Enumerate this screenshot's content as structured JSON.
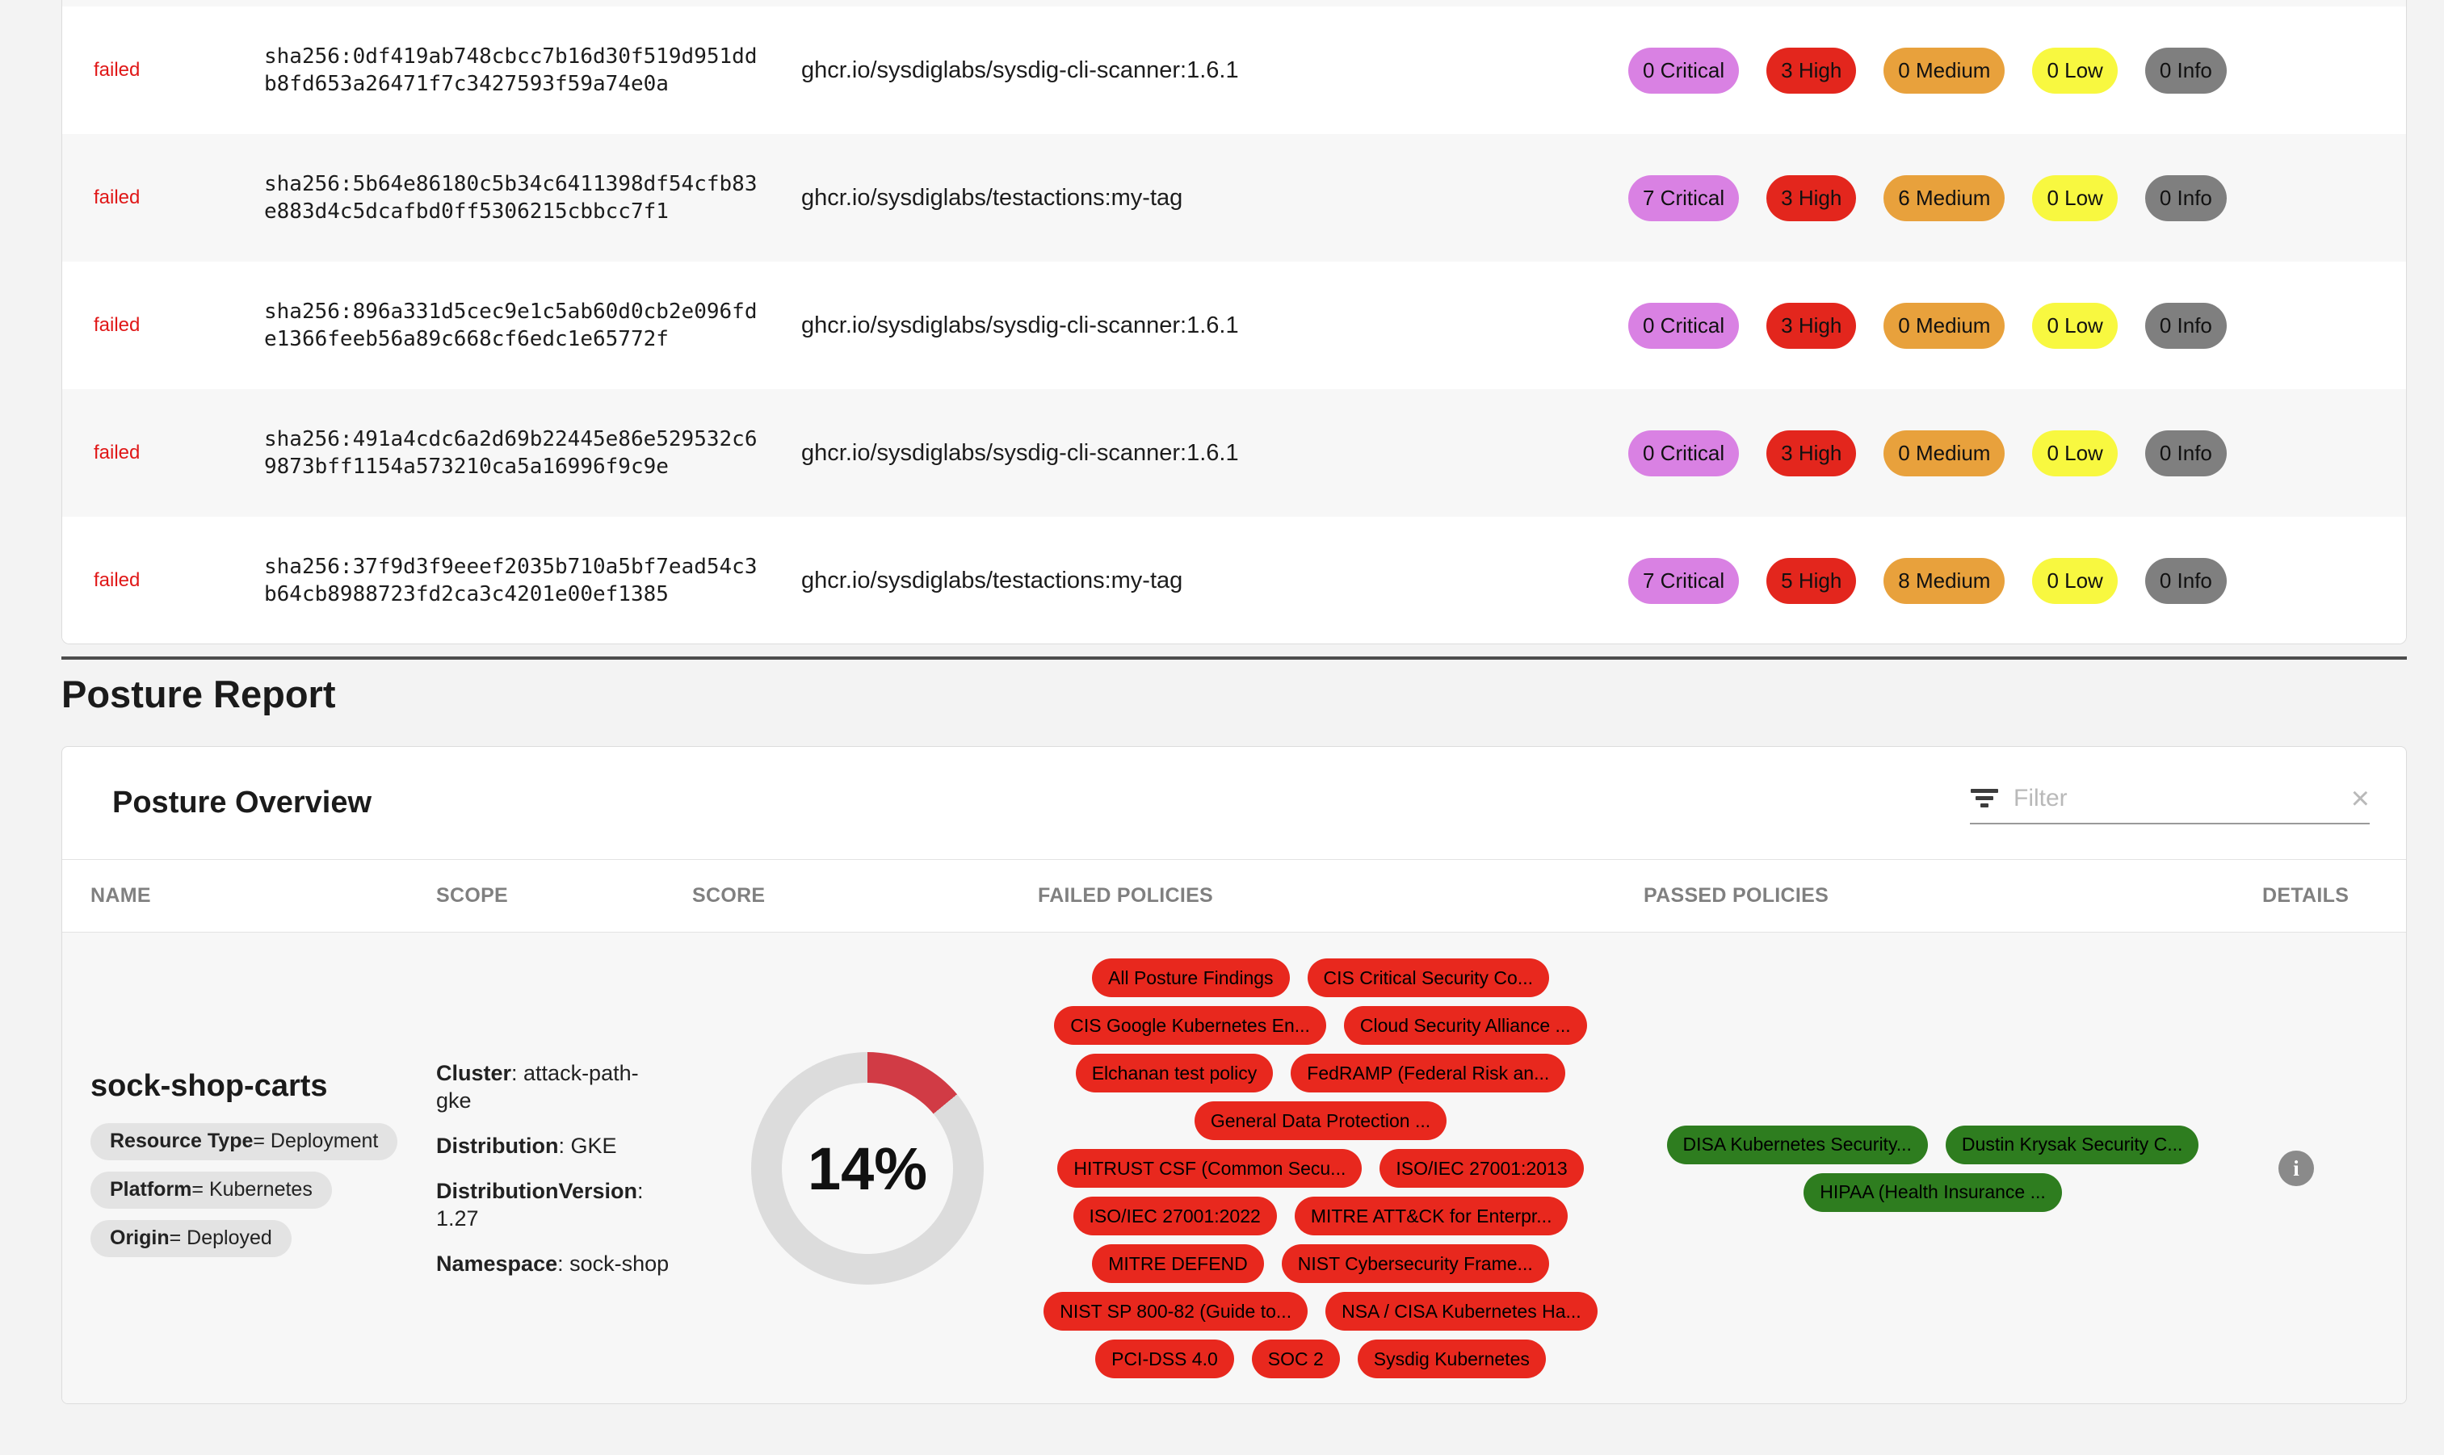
{
  "colors": {
    "page-bg": "#f3f3f3",
    "panel-bg": "#ffffff",
    "row-alt-bg": "#f7f7f7",
    "border": "#dcdcdc",
    "divider-dark": "#4d4d4d",
    "text": "#1c1c1c",
    "muted": "#808080",
    "status-failed": "#e01717",
    "sev-critical": "#d981e3",
    "sev-high": "#e3261d",
    "sev-medium": "#e8a13c",
    "sev-low": "#f8f840",
    "sev-info": "#7f7f7f",
    "policy-failed": "#e8281e",
    "policy-passed": "#2e7d1f",
    "tag-bg": "#e3e3e3",
    "donut-fill": "#d13b45",
    "donut-track": "#dcdcdc",
    "info-icon-bg": "#8a8a8a"
  },
  "scan_table": {
    "rows": [
      {
        "status": "failed",
        "digest_lines": [
          "sha256:0df419ab748cbcc7b16d30f519d951dd",
          "b8fd653a26471f7c3427593f59a74e0a"
        ],
        "image": "ghcr.io/sysdiglabs/sysdig-cli-scanner:1.6.1",
        "severities": [
          {
            "label": "0 Critical",
            "level": "critical"
          },
          {
            "label": "3 High",
            "level": "high"
          },
          {
            "label": "0 Medium",
            "level": "medium"
          },
          {
            "label": "0 Low",
            "level": "low"
          },
          {
            "label": "0 Info",
            "level": "info"
          }
        ]
      },
      {
        "status": "failed",
        "digest_lines": [
          "sha256:5b64e86180c5b34c6411398df54cfb83",
          "e883d4c5dcafbd0ff5306215cbbcc7f1"
        ],
        "image": "ghcr.io/sysdiglabs/testactions:my-tag",
        "severities": [
          {
            "label": "7 Critical",
            "level": "critical"
          },
          {
            "label": "3 High",
            "level": "high"
          },
          {
            "label": "6 Medium",
            "level": "medium"
          },
          {
            "label": "0 Low",
            "level": "low"
          },
          {
            "label": "0 Info",
            "level": "info"
          }
        ]
      },
      {
        "status": "failed",
        "digest_lines": [
          "sha256:896a331d5cec9e1c5ab60d0cb2e096fd",
          "e1366feeb56a89c668cf6edc1e65772f"
        ],
        "image": "ghcr.io/sysdiglabs/sysdig-cli-scanner:1.6.1",
        "severities": [
          {
            "label": "0 Critical",
            "level": "critical"
          },
          {
            "label": "3 High",
            "level": "high"
          },
          {
            "label": "0 Medium",
            "level": "medium"
          },
          {
            "label": "0 Low",
            "level": "low"
          },
          {
            "label": "0 Info",
            "level": "info"
          }
        ]
      },
      {
        "status": "failed",
        "digest_lines": [
          "sha256:491a4cdc6a2d69b22445e86e529532c6",
          "9873bff1154a573210ca5a16996f9c9e"
        ],
        "image": "ghcr.io/sysdiglabs/sysdig-cli-scanner:1.6.1",
        "severities": [
          {
            "label": "0 Critical",
            "level": "critical"
          },
          {
            "label": "3 High",
            "level": "high"
          },
          {
            "label": "0 Medium",
            "level": "medium"
          },
          {
            "label": "0 Low",
            "level": "low"
          },
          {
            "label": "0 Info",
            "level": "info"
          }
        ]
      },
      {
        "status": "failed",
        "digest_lines": [
          "sha256:37f9d3f9eeef2035b710a5bf7ead54c3",
          "b64cb8988723fd2ca3c4201e00ef1385"
        ],
        "image": "ghcr.io/sysdiglabs/testactions:my-tag",
        "severities": [
          {
            "label": "7 Critical",
            "level": "critical"
          },
          {
            "label": "5 High",
            "level": "high"
          },
          {
            "label": "8 Medium",
            "level": "medium"
          },
          {
            "label": "0 Low",
            "level": "low"
          },
          {
            "label": "0 Info",
            "level": "info"
          }
        ]
      }
    ]
  },
  "posture_report": {
    "title": "Posture Report",
    "overview": {
      "title": "Posture Overview",
      "filter": {
        "placeholder": "Filter",
        "clear_icon": "×"
      },
      "columns": [
        "NAME",
        "SCOPE",
        "SCORE",
        "FAILED POLICIES",
        "PASSED POLICIES",
        "DETAILS"
      ],
      "row": {
        "name": "sock-shop-carts",
        "tags": [
          {
            "key": "Resource Type",
            "sep": " = ",
            "value": "Deployment"
          },
          {
            "key": "Platform",
            "sep": " = ",
            "value": "Kubernetes"
          },
          {
            "key": "Origin",
            "sep": " = ",
            "value": "Deployed"
          }
        ],
        "scope": [
          {
            "key": "Cluster",
            "sep": ": ",
            "value": "attack-path-gke"
          },
          {
            "key": "Distribution",
            "sep": ": ",
            "value": "GKE"
          },
          {
            "key": "DistributionVersion",
            "sep": ": ",
            "value": "1.27"
          },
          {
            "key": "Namespace",
            "sep": ": ",
            "value": "sock-shop"
          }
        ],
        "score": {
          "percent": 14,
          "label": "14%"
        },
        "failed_policies": [
          "All Posture Findings",
          "CIS Critical Security Co...",
          "CIS Google Kubernetes En...",
          "Cloud Security Alliance ...",
          "Elchanan test policy",
          "FedRAMP (Federal Risk an...",
          "General Data Protection ...",
          "HITRUST CSF (Common Secu...",
          "ISO/IEC 27001:2013",
          "ISO/IEC 27001:2022",
          "MITRE ATT&CK for Enterpr...",
          "MITRE DEFEND",
          "NIST Cybersecurity Frame...",
          "NIST SP 800-82 (Guide to...",
          "NSA / CISA Kubernetes Ha...",
          "PCI-DSS 4.0",
          "SOC 2",
          "Sysdig Kubernetes"
        ],
        "passed_policies": [
          "DISA Kubernetes Security...",
          "Dustin Krysak Security C...",
          "HIPAA (Health Insurance ..."
        ],
        "details_icon": "i"
      }
    }
  }
}
